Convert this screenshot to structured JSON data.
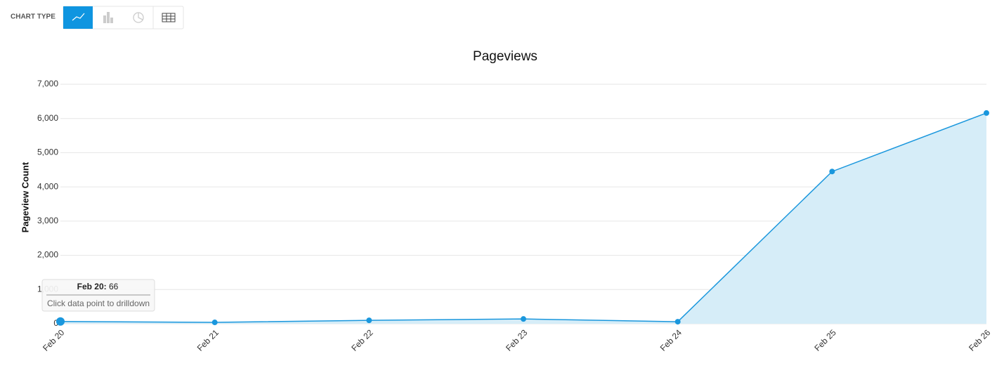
{
  "toolbar": {
    "label": "CHART TYPE"
  },
  "chart_data": {
    "type": "area",
    "title": "Pageviews",
    "y_label": "Pageview Count",
    "categories": [
      "Feb 20",
      "Feb 21",
      "Feb 22",
      "Feb 23",
      "Feb 24",
      "Feb 25",
      "Feb 26"
    ],
    "values": [
      66,
      40,
      100,
      140,
      60,
      4450,
      6160
    ],
    "color": "#1a97dd",
    "fill": "#d6edf8",
    "ylim": [
      0,
      7000
    ],
    "yticks": [
      0,
      {
        "value": 1000,
        "label": "1,000"
      },
      {
        "value": 2000,
        "label": "2,000"
      },
      {
        "value": 3000,
        "label": "3,000"
      },
      {
        "value": 4000,
        "label": "4,000"
      },
      {
        "value": 5000,
        "label": "5,000"
      },
      {
        "value": 6000,
        "label": "6,000"
      },
      {
        "value": 7000,
        "label": "7,000"
      }
    ],
    "grid": true
  },
  "tooltip": {
    "title": "Feb 20:",
    "value": 66,
    "hint": "Click data point to drilldown"
  }
}
